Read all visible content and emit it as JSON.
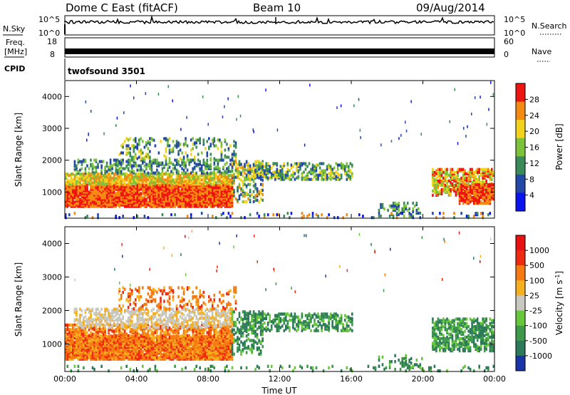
{
  "header": {
    "station": "Dome C East (fitACF)",
    "beam": "Beam 10",
    "date": "09/Aug/2014"
  },
  "strips": {
    "nsky": {
      "label": "N.Sky",
      "tick_top": "10^5",
      "tick_bottom": "10^0"
    },
    "nsearch": {
      "label": "N.Search",
      "tick_top": "10^5",
      "tick_bottom": "10^0"
    },
    "freq": {
      "label": "Freq.",
      "unit": "[MHz]",
      "tick_top": "18",
      "tick_bottom": "8"
    },
    "nave": {
      "label": "Nave",
      "tick_top": "60",
      "tick_bottom": "0"
    },
    "cpid": {
      "label": "CPID",
      "value": "twofsound 3501"
    }
  },
  "chart_data": [
    {
      "type": "heatmap",
      "panel": "power",
      "ylabel": "Slant Range [km]",
      "xlabel": "",
      "y_ticks": [
        "4000",
        "3000",
        "2000",
        "1000"
      ],
      "ylim": [
        180,
        4500
      ],
      "colorbar": {
        "label": "Power [dB]",
        "ticks": [
          "28",
          "24",
          "20",
          "16",
          "12",
          "8",
          "4"
        ],
        "range": [
          0,
          30
        ],
        "colors": [
          "#0a14ee",
          "#2448a8",
          "#3a8a5a",
          "#7cc33a",
          "#f2d21a",
          "#f58a12",
          "#ee1410"
        ]
      }
    },
    {
      "type": "heatmap",
      "panel": "velocity",
      "ylabel": "Slant Range [km]",
      "xlabel": "Time UT",
      "x_ticks": [
        "00:00",
        "04:00",
        "08:00",
        "12:00",
        "16:00",
        "20:00",
        "00:00"
      ],
      "xlim_hours": [
        0,
        24
      ],
      "y_ticks": [
        "4000",
        "3000",
        "2000",
        "1000"
      ],
      "ylim": [
        180,
        4500
      ],
      "colorbar": {
        "label": "Velocity [m s",
        "label_sup": "-1",
        "label_end": "]",
        "ticks": [
          "1000",
          "500",
          "100",
          "25",
          "-25",
          "-100",
          "-500",
          "-1000"
        ],
        "colors": [
          "#1a34a8",
          "#2c7a5a",
          "#3e9a4a",
          "#66c83a",
          "#c8c8c0",
          "#f5b020",
          "#f57a12",
          "#ee2a10",
          "#e81010"
        ]
      },
      "regions": [
        {
          "hours": [
            0,
            4
          ],
          "range_km": [
            700,
            1400
          ],
          "color": "orange"
        },
        {
          "hours": [
            3,
            9.3
          ],
          "range_km": [
            1500,
            2000
          ],
          "color": "grey"
        },
        {
          "hours": [
            9.3,
            16
          ],
          "range_km": [
            1400,
            1900
          ],
          "color": "green"
        },
        {
          "hours": [
            20,
            24
          ],
          "range_km": [
            900,
            1500
          ],
          "color": "green"
        }
      ]
    }
  ]
}
